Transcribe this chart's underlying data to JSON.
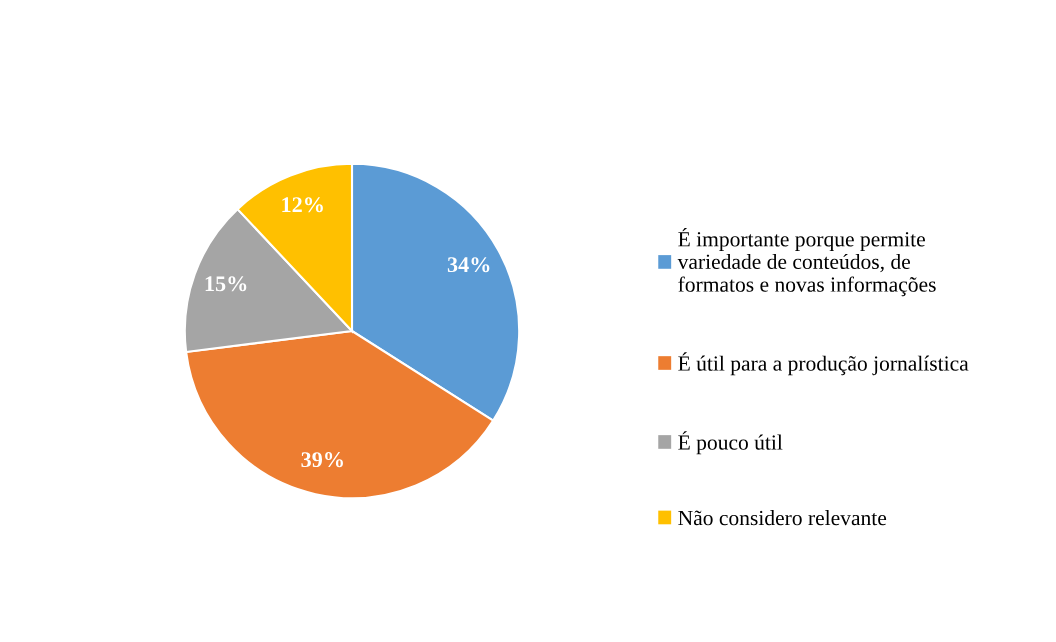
{
  "chart_data": {
    "type": "pie",
    "categories": [
      "É importante porque permite\nvariedade de conteúdos, de\nformatos e novas informações",
      "É útil para a produção jornalística",
      "É pouco útil",
      "Não considero relevante"
    ],
    "values": [
      34,
      39,
      15,
      12
    ],
    "colors": [
      "#5b9bd5",
      "#ed7d31",
      "#a5a5a5",
      "#ffc000"
    ],
    "value_labels": [
      "34%",
      "39%",
      "15%",
      "12%"
    ],
    "legend": "right"
  }
}
